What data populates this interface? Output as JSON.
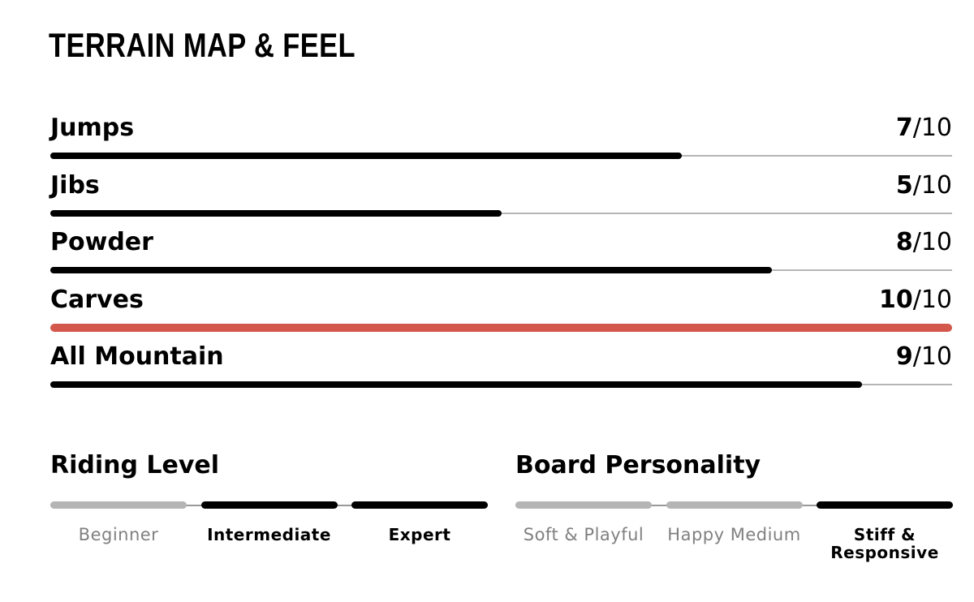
{
  "title": "TERRAIN MAP & FEEL",
  "separator": "/",
  "ratings": [
    {
      "label": "Jumps",
      "score": 7,
      "max": 10,
      "color": "#000000"
    },
    {
      "label": "Jibs",
      "score": 5,
      "max": 10,
      "color": "#000000"
    },
    {
      "label": "Powder",
      "score": 8,
      "max": 10,
      "color": "#000000"
    },
    {
      "label": "Carves",
      "score": 10,
      "max": 10,
      "color": "#d4574b"
    },
    {
      "label": "All Mountain",
      "score": 9,
      "max": 10,
      "color": "#000000"
    }
  ],
  "scales": [
    {
      "title": "Riding Level",
      "options": [
        {
          "label": "Beginner",
          "selected": false
        },
        {
          "label": "Intermediate",
          "selected": true
        },
        {
          "label": "Expert",
          "selected": true
        }
      ]
    },
    {
      "title": "Board Personality",
      "options": [
        {
          "label": "Soft & Playful",
          "selected": false
        },
        {
          "label": "Happy Medium",
          "selected": false
        },
        {
          "label": "Stiff & Responsive",
          "selected": true
        }
      ]
    }
  ]
}
